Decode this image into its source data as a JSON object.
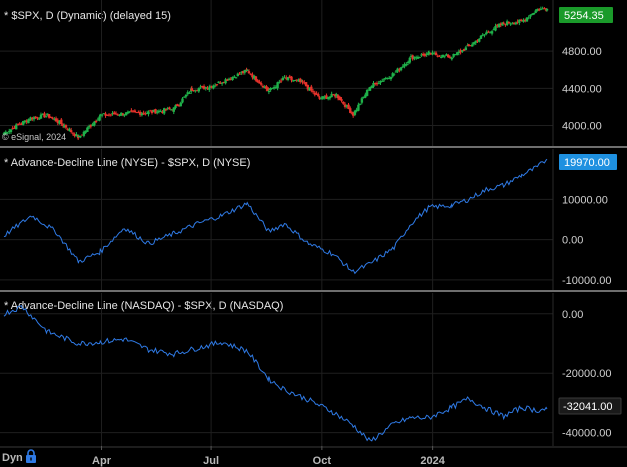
{
  "colors": {
    "background": "#000000",
    "grid": "#1f1f1f",
    "separator": "#6e6e6e",
    "up_candle": "#1fb14a",
    "down_candle": "#e8322b",
    "line": "#2f7ae5",
    "price_tag_spx": "#1a9a2a",
    "price_tag_nyse": "#1e90e0",
    "price_tag_nasdaq": "#1a1a1a",
    "nasdaq_tag_text": "#ffffff"
  },
  "copyright": "© eSignal, 2024",
  "interval_label": "Dyn",
  "x_axis": {
    "ticks": [
      "Apr",
      "Jul",
      "Oct",
      "2024"
    ],
    "tick_dates": [
      "2023-04-01",
      "2023-07-01",
      "2023-10-01",
      "2024-01-01"
    ],
    "range": [
      "2023-01-10",
      "2024-04-05"
    ]
  },
  "chart_data": [
    {
      "type": "candlestick",
      "title": "* $SPX, D (Dynamic) (delayed 15)",
      "y_ticks": [
        {
          "value": 4000,
          "label": "4000.00"
        },
        {
          "value": 4400,
          "label": "4400.00"
        },
        {
          "value": 4800,
          "label": "4800.00"
        }
      ],
      "ylim": [
        3780,
        5350
      ],
      "last_value": 5254.35,
      "last_label": "5254.35",
      "x": [
        "2023-01-10",
        "2023-02-01",
        "2023-02-15",
        "2023-03-01",
        "2023-03-13",
        "2023-03-31",
        "2023-04-20",
        "2023-05-10",
        "2023-05-31",
        "2023-06-15",
        "2023-06-30",
        "2023-07-31",
        "2023-08-18",
        "2023-08-31",
        "2023-09-15",
        "2023-09-29",
        "2023-10-13",
        "2023-10-27",
        "2023-11-10",
        "2023-11-30",
        "2023-12-14",
        "2023-12-29",
        "2024-01-17",
        "2024-01-31",
        "2024-02-15",
        "2024-02-29",
        "2024-03-15",
        "2024-03-28",
        "2024-04-05"
      ],
      "close": [
        3920,
        4080,
        4110,
        4000,
        3870,
        4110,
        4130,
        4140,
        4180,
        4390,
        4420,
        4590,
        4370,
        4510,
        4460,
        4290,
        4330,
        4120,
        4420,
        4560,
        4730,
        4770,
        4740,
        4850,
        5000,
        5100,
        5120,
        5250,
        5254
      ]
    },
    {
      "type": "line",
      "title": "* Advance-Decline Line (NYSE) - $SPX, D (NYSE)",
      "y_ticks": [
        {
          "value": 10000,
          "label": "10000.00"
        },
        {
          "value": 0,
          "label": "0.00"
        },
        {
          "value": -10000,
          "label": "-10000.00"
        }
      ],
      "ylim": [
        -12500,
        22500
      ],
      "last_value": 19970,
      "last_label": "19970.00",
      "x": [
        "2023-01-10",
        "2023-02-02",
        "2023-02-22",
        "2023-03-13",
        "2023-03-31",
        "2023-04-20",
        "2023-05-10",
        "2023-05-31",
        "2023-06-20",
        "2023-07-10",
        "2023-07-31",
        "2023-08-18",
        "2023-08-31",
        "2023-09-20",
        "2023-10-10",
        "2023-10-27",
        "2023-11-10",
        "2023-11-30",
        "2023-12-14",
        "2023-12-29",
        "2024-01-17",
        "2024-01-31",
        "2024-02-15",
        "2024-02-29",
        "2024-03-15",
        "2024-03-28",
        "2024-04-05"
      ],
      "values": [
        1000,
        6000,
        2000,
        -5500,
        -3000,
        3000,
        -1000,
        1500,
        4000,
        6000,
        9000,
        2000,
        4000,
        -1000,
        -3500,
        -8000,
        -6000,
        -2000,
        4000,
        8000,
        8500,
        10000,
        12500,
        13500,
        16000,
        18000,
        19970
      ]
    },
    {
      "type": "line",
      "title": "* Advance-Decline Line (NASDAQ) - $SPX, D (NASDAQ)",
      "y_ticks": [
        {
          "value": 0,
          "label": "0.00"
        },
        {
          "value": -20000,
          "label": "-20000.00"
        },
        {
          "value": -40000,
          "label": "-40000.00"
        }
      ],
      "ylim": [
        -44500,
        7000
      ],
      "last_value": -32041,
      "last_label": "-32041.00",
      "x": [
        "2023-01-10",
        "2023-01-25",
        "2023-02-15",
        "2023-03-13",
        "2023-03-31",
        "2023-04-20",
        "2023-05-10",
        "2023-05-31",
        "2023-06-20",
        "2023-07-10",
        "2023-07-31",
        "2023-08-18",
        "2023-08-31",
        "2023-09-20",
        "2023-10-10",
        "2023-10-27",
        "2023-11-10",
        "2023-11-30",
        "2023-12-14",
        "2023-12-29",
        "2024-01-17",
        "2024-01-31",
        "2024-02-15",
        "2024-02-29",
        "2024-03-15",
        "2024-03-28",
        "2024-04-05"
      ],
      "values": [
        0,
        2500,
        -6000,
        -10000,
        -9500,
        -8500,
        -12000,
        -13500,
        -11500,
        -9500,
        -12500,
        -22000,
        -25500,
        -29000,
        -33000,
        -37500,
        -43000,
        -37000,
        -35000,
        -35000,
        -31500,
        -28500,
        -32000,
        -34500,
        -31500,
        -32500,
        -32041
      ]
    }
  ]
}
